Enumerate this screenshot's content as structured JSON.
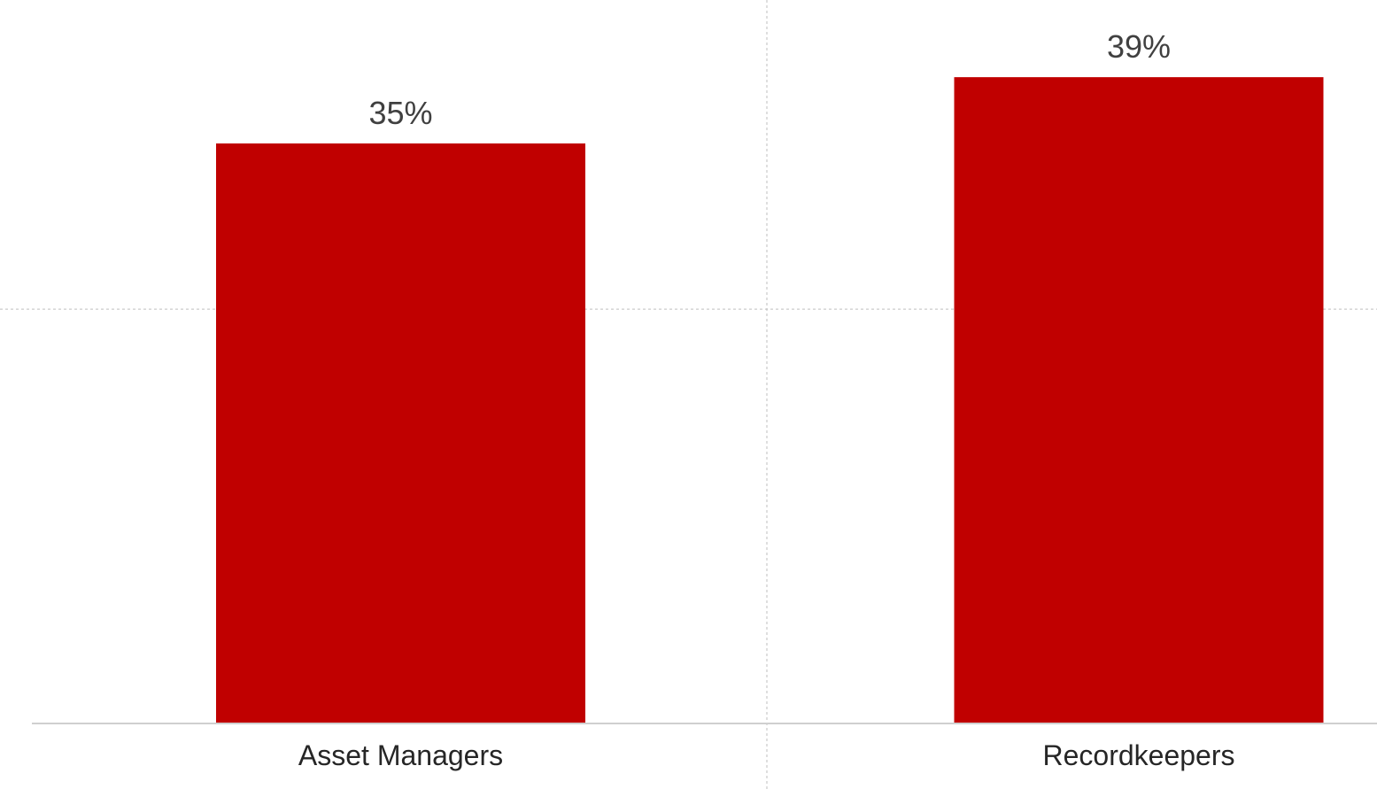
{
  "chart_data": {
    "type": "bar",
    "categories": [
      "Asset Managers",
      "Recordkeepers"
    ],
    "values": [
      35,
      39
    ],
    "value_labels": [
      "35%",
      "39%"
    ],
    "ylim": [
      0,
      40
    ],
    "grid": true,
    "legend": "none",
    "bar_color": "#C00000"
  }
}
